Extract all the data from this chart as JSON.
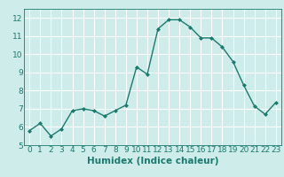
{
  "x": [
    0,
    1,
    2,
    3,
    4,
    5,
    6,
    7,
    8,
    9,
    10,
    11,
    12,
    13,
    14,
    15,
    16,
    17,
    18,
    19,
    20,
    21,
    22,
    23
  ],
  "y": [
    5.8,
    6.2,
    5.5,
    5.9,
    6.9,
    7.0,
    6.9,
    6.6,
    6.9,
    7.2,
    9.3,
    8.9,
    11.4,
    11.9,
    11.9,
    11.5,
    10.9,
    10.9,
    10.4,
    9.6,
    8.3,
    7.15,
    6.7,
    7.35
  ],
  "line_color": "#1a7a6e",
  "marker": "D",
  "markersize": 2.0,
  "linewidth": 1.0,
  "xlabel": "Humidex (Indice chaleur)",
  "xlim": [
    -0.5,
    23.5
  ],
  "ylim": [
    5,
    12.5
  ],
  "yticks": [
    5,
    6,
    7,
    8,
    9,
    10,
    11,
    12
  ],
  "xticks": [
    0,
    1,
    2,
    3,
    4,
    5,
    6,
    7,
    8,
    9,
    10,
    11,
    12,
    13,
    14,
    15,
    16,
    17,
    18,
    19,
    20,
    21,
    22,
    23
  ],
  "bg_color": "#ceecea",
  "grid_color": "#ffffff",
  "label_color": "#1a7a6e",
  "xlabel_fontsize": 7.5,
  "tick_fontsize": 6.5
}
